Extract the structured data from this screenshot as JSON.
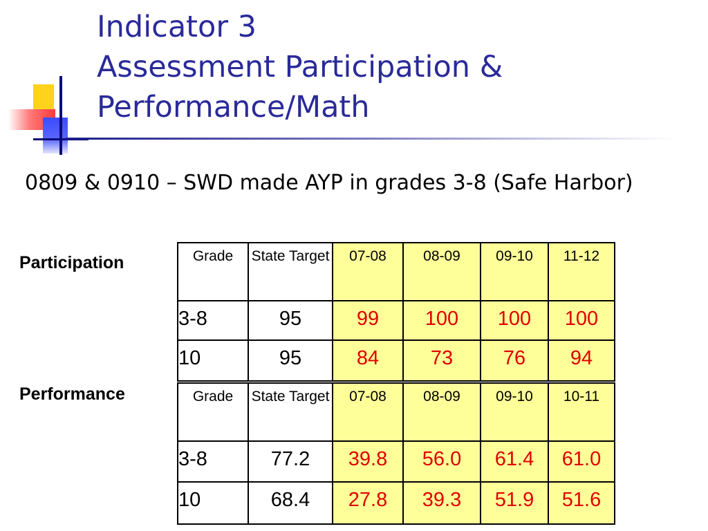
{
  "title": {
    "line1": "Indicator 3",
    "line2": "Assessment Participation &",
    "line3": "Performance/Math"
  },
  "subtitle": "0809 & 0910 – SWD made AYP in grades 3-8 (Safe Harbor)",
  "participation": {
    "label": "Participation",
    "headers": [
      "Grade",
      "State Target",
      "07-08",
      "08-09",
      "09-10",
      "11-12"
    ],
    "rows": [
      {
        "grade": "3-8",
        "target": "95",
        "values": [
          "99",
          "100",
          "100",
          "100"
        ]
      },
      {
        "grade": "10",
        "target": "95",
        "values": [
          "84",
          "73",
          "76",
          "94"
        ]
      }
    ]
  },
  "performance": {
    "label": "Performance",
    "headers": [
      "Grade",
      "State Target",
      "07-08",
      "08-09",
      "09-10",
      "10-11"
    ],
    "rows": [
      {
        "grade": "3-8",
        "target": "77.2",
        "values": [
          "39.8",
          "56.0",
          "61.4",
          "61.0"
        ]
      },
      {
        "grade": "10",
        "target": "68.4",
        "values": [
          "27.8",
          "39.3",
          "51.9",
          "51.6"
        ]
      }
    ]
  },
  "colors": {
    "title": "#2a2a9a",
    "highlight_fill": "#ffff99",
    "value_text": "#e00000"
  }
}
